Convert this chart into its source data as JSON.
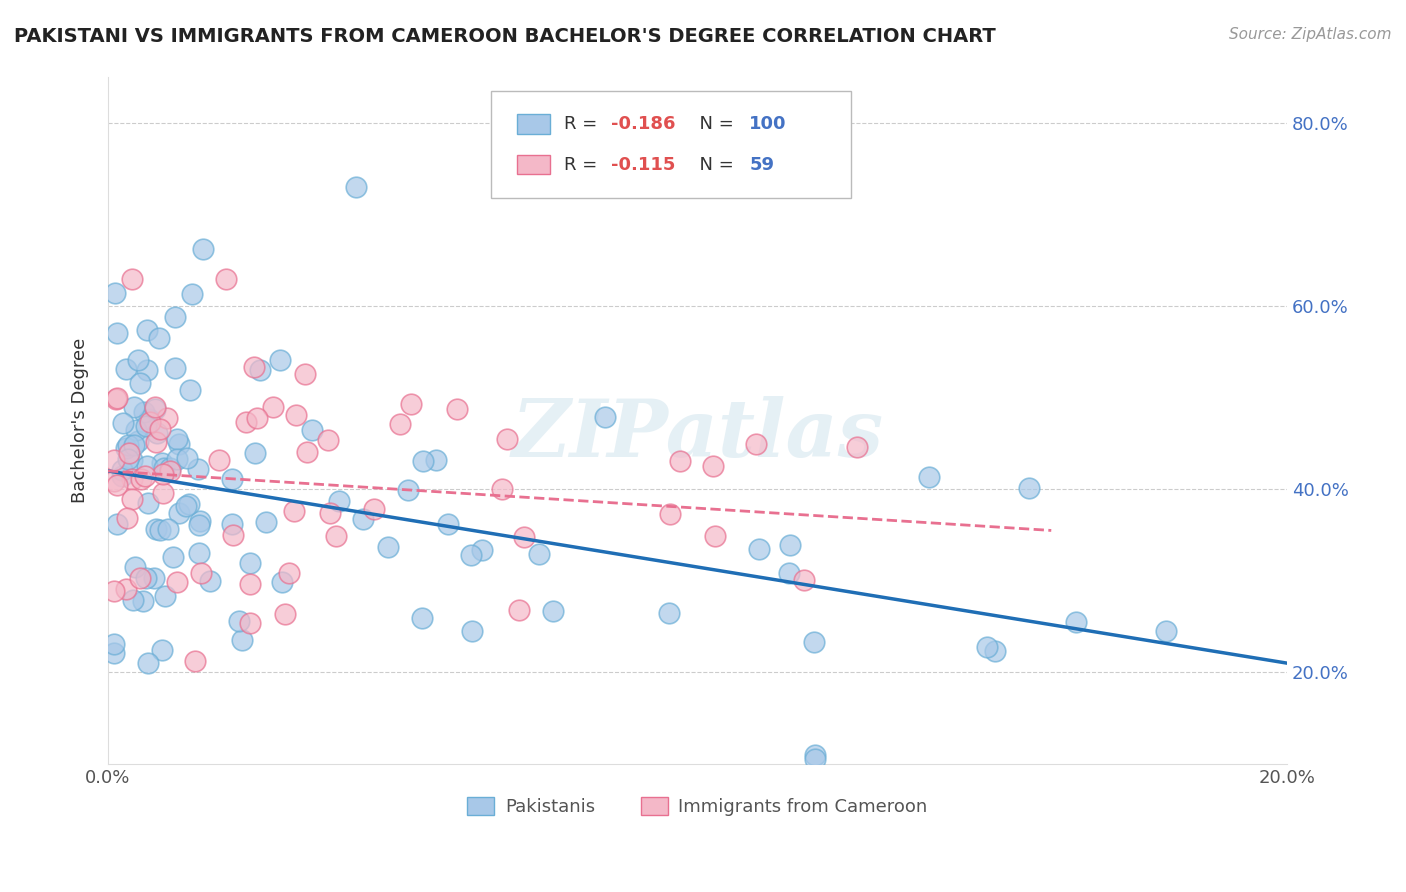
{
  "title": "PAKISTANI VS IMMIGRANTS FROM CAMEROON BACHELOR'S DEGREE CORRELATION CHART",
  "source": "Source: ZipAtlas.com",
  "ylabel": "Bachelor's Degree",
  "legend_label1": "Pakistanis",
  "legend_label2": "Immigrants from Cameroon",
  "R1": -0.186,
  "N1": 100,
  "R2": -0.115,
  "N2": 59,
  "color1": "#a8c8e8",
  "color2": "#f4b8c8",
  "edge_color1": "#6aaed6",
  "edge_color2": "#e87090",
  "line_color1": "#1f6eb5",
  "line_color2": "#e87090",
  "xlim": [
    0.0,
    0.2
  ],
  "ylim": [
    0.1,
    0.85
  ],
  "yticks": [
    0.2,
    0.4,
    0.6,
    0.8
  ],
  "ytick_labels": [
    "20.0%",
    "40.0%",
    "60.0%",
    "80.0%"
  ],
  "xticks": [
    0.0,
    0.05,
    0.1,
    0.15,
    0.2
  ],
  "xtick_labels": [
    "0.0%",
    "",
    "",
    "",
    "20.0%"
  ],
  "grid_color": "#cccccc",
  "background_color": "#ffffff",
  "line1_x0": 0.0,
  "line1_y0": 0.42,
  "line1_x1": 0.2,
  "line1_y1": 0.21,
  "line2_x0": 0.0,
  "line2_y0": 0.42,
  "line2_x1": 0.16,
  "line2_y1": 0.355,
  "watermark": "ZIPatlas"
}
